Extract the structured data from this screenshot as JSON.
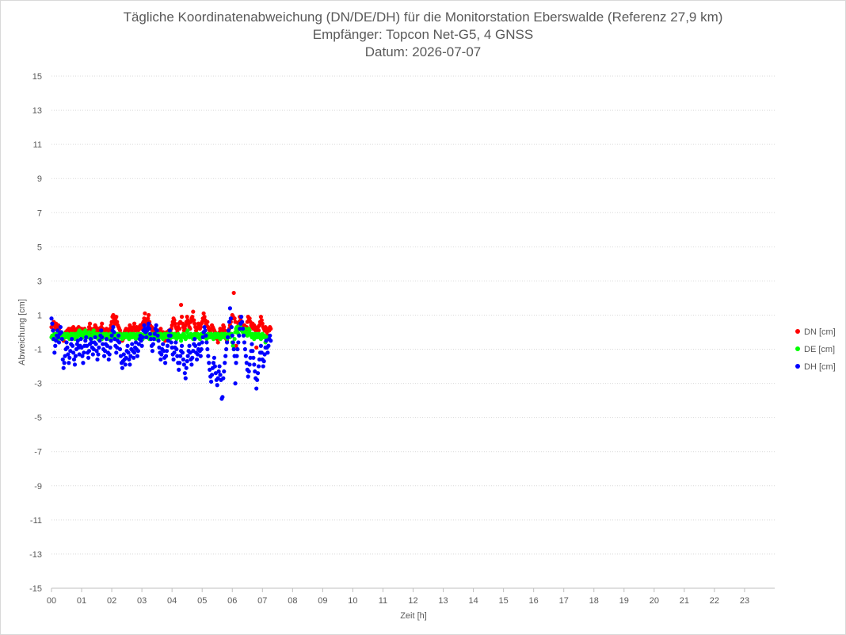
{
  "chart_data": {
    "type": "scatter",
    "title": "Tägliche Koordinatenabweichung (DN/DE/DH) für die Monitorstation Eberswalde (Referenz 27,9 km)",
    "subtitle_1": "Empfänger: Topcon Net-G5, 4 GNSS",
    "subtitle_2": "Datum: 2026-07-07",
    "xlabel": "Zeit [h]",
    "ylabel": "Abweichung [cm]",
    "xlim": [
      0,
      24
    ],
    "ylim": [
      -15,
      15
    ],
    "x_ticks": [
      "00",
      "01",
      "02",
      "03",
      "04",
      "05",
      "06",
      "07",
      "08",
      "09",
      "10",
      "11",
      "12",
      "13",
      "14",
      "15",
      "16",
      "17",
      "18",
      "19",
      "20",
      "21",
      "22",
      "23"
    ],
    "y_ticks": [
      15,
      13,
      11,
      9,
      7,
      5,
      3,
      1,
      -1,
      -3,
      -5,
      -7,
      -9,
      -11,
      -13,
      -15
    ],
    "grid": "horizontal-dotted",
    "legend_position": "right",
    "sample_interval_h": 0.025,
    "series": [
      {
        "name": "DN [cm]",
        "color": "#ff0000",
        "values": [
          0.3,
          0.5,
          0.1,
          0.6,
          0.4,
          0.2,
          0.5,
          0.3,
          0.1,
          0.4,
          0.2,
          0.0,
          -0.1,
          -0.3,
          -0.4,
          -0.2,
          -0.5,
          -0.3,
          -0.1,
          0.0,
          -0.2,
          0.1,
          -0.1,
          0.2,
          0.1,
          0.0,
          0.2,
          -0.1,
          0.1,
          0.3,
          0.2,
          0.1,
          -0.1,
          0.0,
          0.2,
          0.1,
          0.3,
          0.2,
          0.1,
          0.0,
          0.2,
          -0.1,
          0.1,
          0.0,
          0.2,
          0.1,
          -0.1,
          -0.2,
          0.0,
          0.1,
          0.3,
          0.5,
          0.2,
          0.1,
          -0.1,
          0.0,
          0.2,
          0.1,
          0.4,
          0.3,
          0.2,
          0.1,
          -0.1,
          0.2,
          0.0,
          -0.1,
          0.3,
          0.5,
          0.2,
          0.1,
          0.0,
          -0.2,
          0.1,
          0.2,
          0.0,
          0.1,
          -0.1,
          0.0,
          0.2,
          0.4,
          0.6,
          0.9,
          1.0,
          0.7,
          0.5,
          0.8,
          0.9,
          0.6,
          0.4,
          0.3,
          0.2,
          0.1,
          -0.1,
          -0.3,
          -0.5,
          -0.4,
          -0.2,
          0.0,
          0.1,
          0.2,
          0.0,
          -0.1,
          0.1,
          0.2,
          0.4,
          0.3,
          0.1,
          0.2,
          0.0,
          0.3,
          0.5,
          0.2,
          0.1,
          0.3,
          0.2,
          0.1,
          0.3,
          0.2,
          0.4,
          0.3,
          0.2,
          0.5,
          0.6,
          0.8,
          1.1,
          0.7,
          0.5,
          0.6,
          0.8,
          1.0,
          0.6,
          0.4,
          0.2,
          0.3,
          0.1,
          0.0,
          0.2,
          0.1,
          0.0,
          -0.1,
          0.0,
          0.1,
          -0.1,
          0.0,
          0.1,
          0.2,
          0.0,
          -0.1,
          0.0,
          -0.2,
          -0.3,
          -0.5,
          -0.2,
          0.0,
          -0.1,
          0.0,
          0.1,
          -0.1,
          0.0,
          0.2,
          0.4,
          0.6,
          0.8,
          0.7,
          0.5,
          0.3,
          0.2,
          0.0,
          0.3,
          0.5,
          0.2,
          0.6,
          1.6,
          0.9,
          0.5,
          0.3,
          0.1,
          0.2,
          0.4,
          0.6,
          0.9,
          0.7,
          0.5,
          0.3,
          0.2,
          0.6,
          0.8,
          0.9,
          1.2,
          0.7,
          0.5,
          0.3,
          0.1,
          0.2,
          0.3,
          0.5,
          0.4,
          0.2,
          0.3,
          0.5,
          0.6,
          0.8,
          1.1,
          0.9,
          0.7,
          0.5,
          0.4,
          0.6,
          0.3,
          0.2,
          0.1,
          0.0,
          0.2,
          0.4,
          0.3,
          0.2,
          0.1,
          0.0,
          -0.1,
          -0.2,
          -0.4,
          -0.6,
          -0.3,
          0.0,
          0.2,
          0.1,
          0.0,
          0.2,
          0.4,
          0.3,
          0.1,
          -0.2,
          -0.4,
          -0.5,
          -0.3,
          0.0,
          0.2,
          0.4,
          0.6,
          0.8,
          1.0,
          0.9,
          2.3,
          0.8,
          0.6,
          -0.8,
          0.2,
          0.3,
          0.5,
          0.6,
          0.9,
          0.7,
          0.4,
          0.2,
          0.3,
          0.1,
          0.4,
          0.2,
          0.1,
          0.3,
          0.6,
          0.9,
          0.7,
          0.8,
          0.6,
          0.4,
          0.3,
          0.5,
          0.2,
          0.4,
          0.3,
          0.1,
          -0.9,
          0.2,
          0.3,
          0.1,
          0.4,
          0.6,
          0.9,
          0.7,
          0.5,
          0.3,
          0.2,
          0.1,
          0.3,
          0.1,
          0.0,
          -0.2,
          0.2,
          0.1,
          0.3,
          0.2
        ]
      },
      {
        "name": "DE [cm]",
        "color": "#00ff00",
        "values": [
          -0.3,
          -0.2,
          -0.4,
          -0.3,
          -0.1,
          -0.2,
          -0.3,
          -0.1,
          -0.2,
          -0.4,
          -0.3,
          -0.2,
          -0.1,
          -0.3,
          -0.2,
          -0.4,
          -0.3,
          -0.1,
          -0.2,
          -0.3,
          -0.2,
          -0.1,
          -0.3,
          -0.2,
          -0.4,
          -0.2,
          -0.1,
          -0.3,
          -0.2,
          -0.1,
          -0.3,
          -0.4,
          -0.2,
          -0.1,
          -0.3,
          -0.2,
          0.0,
          0.1,
          -0.1,
          -0.2,
          0.0,
          -0.1,
          -0.3,
          -0.2,
          0.0,
          0.1,
          -0.1,
          -0.2,
          -0.3,
          -0.1,
          0.0,
          -0.2,
          -0.3,
          -0.4,
          -0.2,
          0.0,
          0.1,
          -0.1,
          -0.3,
          -0.2,
          -0.1,
          -0.3,
          -0.4,
          -0.2,
          -0.1,
          -0.3,
          -0.2,
          -0.4,
          -0.3,
          -0.1,
          -0.2,
          -0.3,
          -0.2,
          -0.1,
          -0.3,
          -0.2,
          -0.4,
          -0.3,
          -0.1,
          -0.2,
          -0.3,
          -0.2,
          -0.1,
          -0.3,
          -0.2,
          -0.4,
          -0.3,
          -0.1,
          -0.2,
          -0.3,
          -0.2,
          -0.1,
          -0.3,
          -0.2,
          -0.4,
          -0.3,
          -0.1,
          -0.2,
          -0.3,
          -0.2,
          -0.1,
          -0.3,
          -0.2,
          -0.4,
          -0.3,
          -0.1,
          -0.2,
          -0.3,
          -0.2,
          -0.1,
          -0.3,
          -0.2,
          -0.4,
          -0.3,
          -0.1,
          -0.2,
          -0.3,
          -0.2,
          -0.1,
          -0.3,
          -0.2,
          -0.4,
          -0.3,
          -0.1,
          -0.2,
          -0.3,
          -0.2,
          -0.1,
          -0.3,
          -0.2,
          -0.4,
          -0.3,
          -0.1,
          -0.2,
          -0.3,
          -0.2,
          -0.1,
          -0.3,
          -0.2,
          -0.4,
          -0.3,
          -0.1,
          -0.2,
          -0.3,
          -0.2,
          -0.1,
          -0.3,
          -0.2,
          -0.4,
          -0.3,
          -0.1,
          -0.2,
          -0.3,
          -0.2,
          -0.1,
          -0.3,
          -0.2,
          -0.4,
          -0.3,
          -0.1,
          -0.2,
          -0.3,
          -0.2,
          -0.1,
          -0.3,
          -0.2,
          -0.4,
          -0.3,
          -0.1,
          -0.2,
          -0.3,
          -0.2,
          -0.5,
          -0.3,
          -0.2,
          -0.1,
          -0.3,
          -0.2,
          -0.4,
          -0.3,
          0.0,
          0.1,
          -0.2,
          -0.3,
          -0.2,
          -0.1,
          -0.3,
          -0.2,
          -0.4,
          -0.3,
          -0.1,
          -0.2,
          -0.3,
          -0.2,
          -0.1,
          -0.3,
          -0.2,
          -0.4,
          -0.3,
          -0.1,
          -0.2,
          -0.3,
          -0.2,
          -0.1,
          -0.3,
          -0.2,
          -0.4,
          -0.3,
          -0.1,
          -0.2,
          -0.3,
          -0.2,
          -0.1,
          -0.3,
          -0.2,
          -0.4,
          -0.3,
          -0.1,
          -0.2,
          -0.3,
          -0.2,
          -0.1,
          -0.3,
          -0.2,
          -0.4,
          -0.3,
          -0.1,
          -0.2,
          -0.3,
          -0.2,
          -0.1,
          -0.3,
          -0.2,
          -0.4,
          -0.3,
          -0.1,
          -0.2,
          -0.3,
          -0.2,
          -0.1,
          -0.6,
          -0.8,
          -1.0,
          -0.4,
          0.0,
          0.2,
          0.3,
          0.1,
          -0.1,
          0.2,
          0.4,
          0.3,
          0.1,
          0.2,
          0.0,
          -0.1,
          0.1,
          0.2,
          0.0,
          -0.1,
          -0.2,
          0.0,
          0.2,
          0.1,
          -0.1,
          -0.2,
          -0.3,
          -0.1,
          -0.2,
          -0.4,
          -0.3,
          -0.1,
          -0.2,
          -0.3,
          -0.2,
          -0.1,
          -0.3,
          -0.2,
          -0.4,
          -0.3,
          -0.1,
          -0.2,
          -0.3,
          -0.2,
          -0.6,
          -0.9,
          -0.4,
          -0.3
        ]
      },
      {
        "name": "DH [cm]",
        "color": "#0000ff",
        "values": [
          0.8,
          0.5,
          0.1,
          -0.4,
          -1.2,
          -0.8,
          -0.5,
          -0.2,
          0.1,
          -0.3,
          -0.6,
          -0.1,
          0.3,
          0.0,
          -0.4,
          -1.6,
          -2.1,
          -1.8,
          -1.4,
          -1.0,
          -0.6,
          -0.9,
          -1.3,
          -1.8,
          -1.5,
          -1.1,
          -0.7,
          -0.4,
          -0.8,
          -1.2,
          -1.6,
          -1.9,
          -1.4,
          -1.0,
          -0.7,
          -0.5,
          -0.9,
          -1.3,
          -0.8,
          -0.4,
          -0.9,
          -1.4,
          -1.8,
          -1.2,
          -0.8,
          -0.5,
          -0.3,
          -0.8,
          -1.2,
          -1.5,
          -1.1,
          -0.7,
          -0.4,
          -0.6,
          -0.9,
          -1.3,
          -1.0,
          -0.6,
          -0.3,
          -0.7,
          -1.1,
          -1.6,
          -1.3,
          -0.9,
          -0.5,
          -0.2,
          0.1,
          -0.3,
          -0.7,
          -1.0,
          -1.4,
          -1.1,
          -0.7,
          -0.4,
          -0.8,
          -1.2,
          -1.6,
          -1.3,
          -0.9,
          -0.5,
          -0.2,
          0.1,
          0.3,
          0.0,
          -0.4,
          -0.8,
          -1.2,
          -0.9,
          -0.5,
          -0.2,
          -0.6,
          -1.0,
          -1.4,
          -1.8,
          -2.1,
          -1.7,
          -1.3,
          -1.6,
          -1.9,
          -1.5,
          -1.1,
          -0.8,
          -1.2,
          -1.6,
          -1.9,
          -1.4,
          -1.0,
          -0.7,
          -1.1,
          -1.5,
          -1.2,
          -0.9,
          -0.6,
          -1.0,
          -1.4,
          -1.1,
          -0.7,
          -0.4,
          -0.2,
          -0.5,
          -0.8,
          -0.3,
          0.1,
          0.4,
          0.2,
          0.0,
          -0.3,
          0.1,
          0.3,
          0.5,
          0.2,
          -0.1,
          -0.4,
          -0.8,
          -1.1,
          -0.7,
          -0.4,
          -0.1,
          0.2,
          0.4,
          0.1,
          -0.2,
          -0.5,
          -0.9,
          -1.2,
          -1.6,
          -1.3,
          -1.0,
          -0.7,
          -1.1,
          -1.5,
          -1.8,
          -1.4,
          -1.1,
          -0.8,
          -0.5,
          -0.2,
          0.1,
          -0.2,
          -0.6,
          -0.9,
          -1.3,
          -1.6,
          -1.2,
          -0.9,
          -0.6,
          -1.0,
          -1.4,
          -1.8,
          -2.2,
          -1.8,
          -1.4,
          -1.1,
          -0.8,
          -1.2,
          -1.6,
          -1.9,
          -2.4,
          -2.7,
          -2.1,
          -1.7,
          -1.4,
          -1.1,
          -0.8,
          -1.2,
          -1.6,
          -1.9,
          -1.5,
          -1.1,
          -0.7,
          -0.4,
          -0.8,
          -1.2,
          -1.6,
          -1.3,
          -1.0,
          -0.7,
          -1.1,
          -1.4,
          -1.0,
          -0.6,
          -0.3,
          0.0,
          0.3,
          0.1,
          -0.2,
          -0.6,
          -1.0,
          -1.4,
          -1.8,
          -2.2,
          -2.6,
          -2.9,
          -2.5,
          -2.1,
          -1.8,
          -1.5,
          -2.0,
          -2.4,
          -2.8,
          -3.1,
          -2.7,
          -2.3,
          -2.0,
          -2.5,
          -2.8,
          -3.9,
          -3.8,
          -2.7,
          -2.3,
          -1.8,
          -1.4,
          -1.0,
          -0.6,
          -0.3,
          0.1,
          0.6,
          1.4,
          0.8,
          0.3,
          -0.2,
          -0.6,
          -1.0,
          -1.4,
          -3.0,
          -1.8,
          -1.4,
          -1.0,
          -0.6,
          -0.2,
          0.2,
          0.5,
          0.9,
          0.6,
          0.2,
          -0.2,
          -0.6,
          -1.0,
          -1.4,
          -1.8,
          -2.2,
          -2.6,
          -2.3,
          -1.9,
          -1.5,
          -1.1,
          -0.7,
          -1.1,
          -1.5,
          -1.9,
          -2.3,
          -2.7,
          -3.3,
          -2.8,
          -2.4,
          -2.0,
          -1.6,
          -1.2,
          -0.8,
          -1.2,
          -1.6,
          -2.0,
          -1.7,
          -1.3,
          -0.9,
          -0.5,
          -0.9,
          -1.2,
          -0.8,
          -0.4,
          -0.2,
          -0.5
        ]
      }
    ]
  }
}
